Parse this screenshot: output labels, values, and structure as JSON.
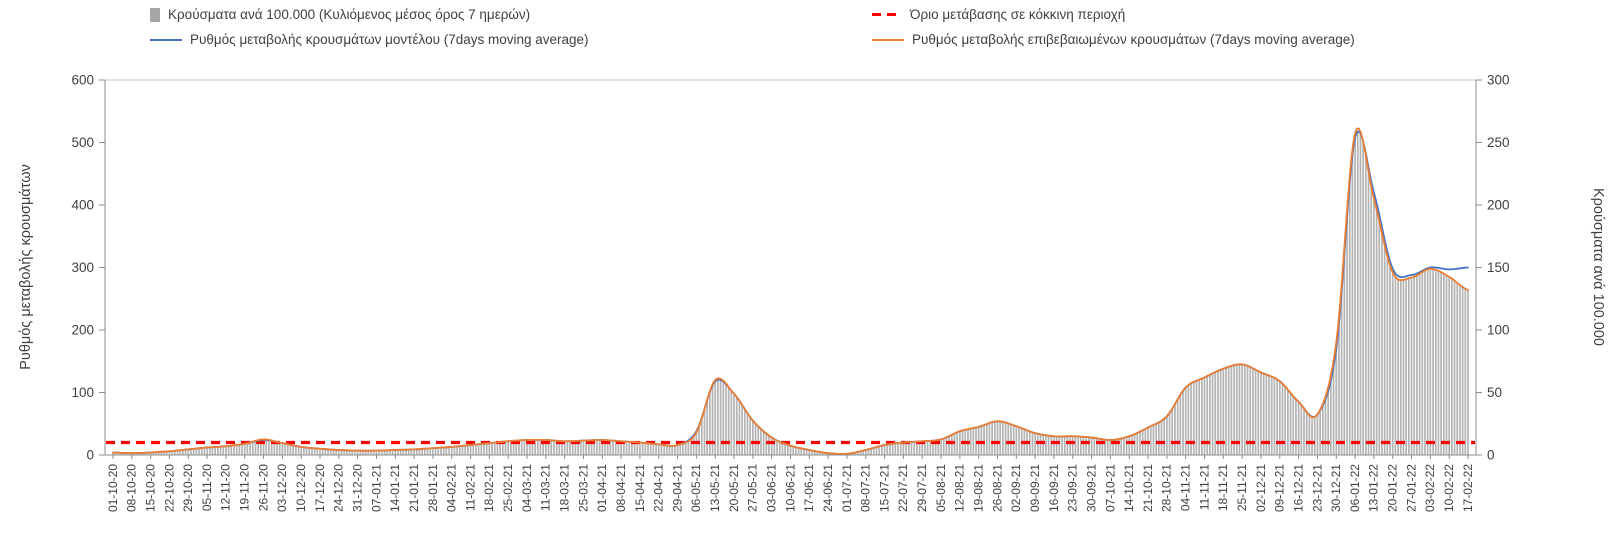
{
  "legend": {
    "items": [
      {
        "label": "Κρούσματα ανά 100.000 (Κυλιόμενος μέσος όρος 7 ημερών)",
        "marker": "bar",
        "color": "#a6a6a6"
      },
      {
        "label": "Όριο μετάβασης σε κόκκινη περιοχή",
        "marker": "dash",
        "color": "#ff0000"
      },
      {
        "label": "Ρυθμός μεταβολής κρουσμάτων μοντέλου (7days moving average)",
        "marker": "line",
        "color": "#4472c4"
      },
      {
        "label": "Ρυθμός μεταβολής επιβεβαιωμένων κρουσμάτων (7days moving average)",
        "marker": "line",
        "color": "#ed7d31"
      }
    ]
  },
  "chart_data": {
    "type": "bar+line",
    "x": [
      "01-10-20",
      "08-10-20",
      "15-10-20",
      "22-10-20",
      "29-10-20",
      "05-11-20",
      "12-11-20",
      "19-11-20",
      "26-11-20",
      "03-12-20",
      "10-12-20",
      "17-12-20",
      "24-12-20",
      "31-12-20",
      "07-01-21",
      "14-01-21",
      "21-01-21",
      "28-01-21",
      "04-02-21",
      "11-02-21",
      "18-02-21",
      "25-02-21",
      "04-03-21",
      "11-03-21",
      "18-03-21",
      "25-03-21",
      "01-04-21",
      "08-04-21",
      "15-04-21",
      "22-04-21",
      "29-04-21",
      "06-05-21",
      "13-05-21",
      "20-05-21",
      "27-05-21",
      "03-06-21",
      "10-06-21",
      "17-06-21",
      "24-06-21",
      "01-07-21",
      "08-07-21",
      "15-07-21",
      "22-07-21",
      "29-07-21",
      "05-08-21",
      "12-08-21",
      "19-08-21",
      "26-08-21",
      "02-09-21",
      "09-09-21",
      "16-09-21",
      "23-09-21",
      "30-09-21",
      "07-10-21",
      "14-10-21",
      "21-10-21",
      "28-10-21",
      "04-11-21",
      "11-11-21",
      "18-11-21",
      "25-11-21",
      "02-12-21",
      "09-12-21",
      "16-12-21",
      "23-12-21",
      "30-12-21",
      "06-01-22",
      "13-01-22",
      "20-01-22",
      "27-01-22",
      "03-02-22",
      "10-02-22",
      "17-02-22"
    ],
    "series": [
      {
        "name": "Κρούσματα ανά 100.000 (Κυλιόμενος μέσος όρος 7 ημερών)",
        "type": "bar",
        "axis": "right",
        "color": "#b3b3b3",
        "values": [
          2,
          1.5,
          2,
          3,
          4.5,
          6,
          7,
          9,
          12.5,
          9.5,
          6.5,
          5,
          4,
          3.5,
          3.5,
          4,
          4.5,
          5.5,
          6.5,
          8,
          9.5,
          11,
          12,
          12,
          11,
          11.5,
          12,
          11,
          10,
          8.5,
          8,
          18,
          60,
          49,
          27.5,
          14,
          7.5,
          4,
          1.5,
          1,
          4,
          8,
          10,
          11,
          12.5,
          19,
          22.5,
          27,
          23,
          17.5,
          15,
          15,
          14,
          12,
          15,
          22,
          31,
          54,
          62,
          69,
          72.5,
          66,
          59,
          42.5,
          32.5,
          90,
          255,
          205,
          146,
          142,
          149,
          142,
          132
        ]
      },
      {
        "name": "Ρυθμός μεταβολής κρουσμάτων μοντέλου (7days moving average)",
        "type": "line",
        "axis": "left",
        "color": "#4472c4",
        "values": [
          4,
          3,
          4,
          6,
          9,
          12,
          14,
          18,
          24,
          19,
          13,
          10,
          8,
          7,
          7,
          8,
          9,
          11,
          13,
          16,
          19,
          22,
          24,
          24,
          22,
          23,
          24,
          22,
          20,
          17,
          16,
          38,
          118,
          98,
          55,
          28,
          15,
          8,
          3,
          2,
          8,
          16,
          20,
          22,
          25,
          38,
          45,
          54,
          46,
          35,
          30,
          30,
          28,
          24,
          30,
          44,
          62,
          108,
          124,
          138,
          145,
          132,
          118,
          85,
          65,
          170,
          508,
          420,
          298,
          288,
          300,
          297,
          300
        ]
      },
      {
        "name": "Ρυθμός μεταβολής επιβεβαιωμένων κρουσμάτων (7days moving average)",
        "type": "line",
        "axis": "left",
        "color": "#ed7d31",
        "values": [
          4,
          3,
          4,
          6,
          9,
          12,
          14,
          18,
          25,
          19,
          13,
          10,
          8,
          7,
          7,
          8,
          9,
          11,
          13,
          16,
          19,
          22,
          24,
          24,
          22,
          23,
          24,
          22,
          20,
          17,
          16,
          36,
          120,
          98,
          55,
          28,
          15,
          8,
          3,
          2,
          8,
          16,
          20,
          22,
          25,
          38,
          45,
          54,
          46,
          35,
          30,
          30,
          28,
          24,
          30,
          44,
          62,
          108,
          124,
          138,
          145,
          132,
          118,
          85,
          65,
          180,
          515,
          410,
          292,
          284,
          298,
          285,
          264
        ]
      },
      {
        "name": "Όριο μετάβασης σε κόκκινη περιοχή",
        "type": "threshold",
        "axis": "left",
        "color": "#ff0000",
        "value": 20
      }
    ],
    "left_axis": {
      "label": "Ρυθμός μεταβολής κρουσμάτων",
      "min": 0,
      "max": 600,
      "ticks": [
        0,
        100,
        200,
        300,
        400,
        500,
        600
      ]
    },
    "right_axis": {
      "label": "Κρούσματα ανά 100.000",
      "min": 0,
      "max": 300,
      "ticks": [
        0,
        50,
        100,
        150,
        200,
        250,
        300
      ]
    },
    "layout": {
      "grid": "off",
      "legend_position": "top",
      "x_tick_interval": "weekly",
      "bar_granularity": "daily (interpolated between weekly samples)"
    }
  }
}
